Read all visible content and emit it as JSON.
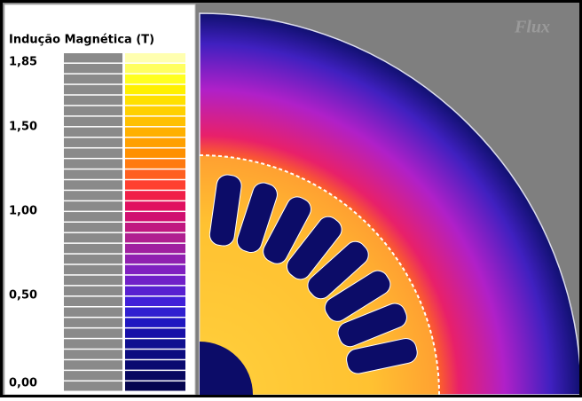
{
  "legend": {
    "title": "Indução Magnética (T)",
    "ticks": [
      "1,85",
      "1,50",
      "1,00",
      "0,50",
      "0,00"
    ]
  },
  "logo": "Flux"
}
